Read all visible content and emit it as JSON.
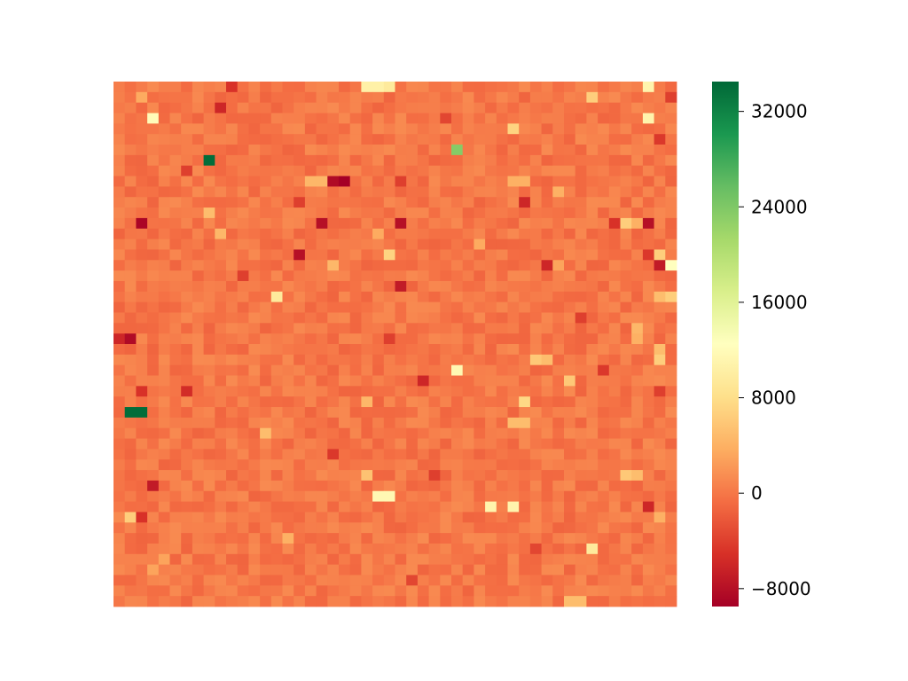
{
  "chart_data": {
    "type": "heatmap",
    "title": "",
    "xlabel": "",
    "ylabel": "",
    "rows": 50,
    "cols": 50,
    "value_range": [
      -9500,
      34500
    ],
    "colormap": "RdYlGn",
    "colorbar": {
      "ticks": [
        32000,
        24000,
        16000,
        8000,
        0,
        -8000
      ],
      "tick_labels": [
        "32000",
        "24000",
        "16000",
        "8000",
        "0",
        "−8000"
      ]
    },
    "background_value": 0,
    "background_jitter": 1300,
    "notable_cells": [
      {
        "row": 0,
        "col": 22,
        "value": 10500
      },
      {
        "row": 0,
        "col": 23,
        "value": 10500
      },
      {
        "row": 0,
        "col": 24,
        "value": 9500
      },
      {
        "row": 0,
        "col": 47,
        "value": 11000
      },
      {
        "row": 0,
        "col": 10,
        "value": -5000
      },
      {
        "row": 1,
        "col": 2,
        "value": 3500
      },
      {
        "row": 1,
        "col": 42,
        "value": 6500
      },
      {
        "row": 1,
        "col": 49,
        "value": -4000
      },
      {
        "row": 2,
        "col": 9,
        "value": -6000
      },
      {
        "row": 3,
        "col": 3,
        "value": 12000
      },
      {
        "row": 3,
        "col": 47,
        "value": 11000
      },
      {
        "row": 3,
        "col": 29,
        "value": -3500
      },
      {
        "row": 4,
        "col": 35,
        "value": 7000
      },
      {
        "row": 5,
        "col": 48,
        "value": -4500
      },
      {
        "row": 6,
        "col": 30,
        "value": 23500
      },
      {
        "row": 7,
        "col": 8,
        "value": 34000
      },
      {
        "row": 8,
        "col": 6,
        "value": -4000
      },
      {
        "row": 9,
        "col": 19,
        "value": -8500
      },
      {
        "row": 9,
        "col": 20,
        "value": -9500
      },
      {
        "row": 9,
        "col": 17,
        "value": 4500
      },
      {
        "row": 9,
        "col": 18,
        "value": 4500
      },
      {
        "row": 9,
        "col": 25,
        "value": -4000
      },
      {
        "row": 9,
        "col": 35,
        "value": 4000
      },
      {
        "row": 9,
        "col": 36,
        "value": 4000
      },
      {
        "row": 10,
        "col": 39,
        "value": 4000
      },
      {
        "row": 11,
        "col": 16,
        "value": -4000
      },
      {
        "row": 11,
        "col": 36,
        "value": -6000
      },
      {
        "row": 12,
        "col": 8,
        "value": 5000
      },
      {
        "row": 13,
        "col": 2,
        "value": -9000
      },
      {
        "row": 13,
        "col": 18,
        "value": -8000
      },
      {
        "row": 13,
        "col": 25,
        "value": -8000
      },
      {
        "row": 13,
        "col": 44,
        "value": -5000
      },
      {
        "row": 13,
        "col": 45,
        "value": 6500
      },
      {
        "row": 13,
        "col": 46,
        "value": 4000
      },
      {
        "row": 13,
        "col": 47,
        "value": -8000
      },
      {
        "row": 14,
        "col": 9,
        "value": 4500
      },
      {
        "row": 14,
        "col": 23,
        "value": 3500
      },
      {
        "row": 15,
        "col": 32,
        "value": 3500
      },
      {
        "row": 16,
        "col": 16,
        "value": -8000
      },
      {
        "row": 16,
        "col": 24,
        "value": 7000
      },
      {
        "row": 16,
        "col": 48,
        "value": 6500
      },
      {
        "row": 16,
        "col": 47,
        "value": -4500
      },
      {
        "row": 17,
        "col": 19,
        "value": 4500
      },
      {
        "row": 17,
        "col": 38,
        "value": -6000
      },
      {
        "row": 17,
        "col": 39,
        "value": 3000
      },
      {
        "row": 17,
        "col": 49,
        "value": 12500
      },
      {
        "row": 17,
        "col": 48,
        "value": -7000
      },
      {
        "row": 18,
        "col": 11,
        "value": -4000
      },
      {
        "row": 19,
        "col": 25,
        "value": -7000
      },
      {
        "row": 20,
        "col": 14,
        "value": 9500
      },
      {
        "row": 20,
        "col": 48,
        "value": 5000
      },
      {
        "row": 20,
        "col": 49,
        "value": 6500
      },
      {
        "row": 22,
        "col": 41,
        "value": -4000
      },
      {
        "row": 23,
        "col": 46,
        "value": 4500
      },
      {
        "row": 24,
        "col": 0,
        "value": -6000
      },
      {
        "row": 24,
        "col": 1,
        "value": -8500
      },
      {
        "row": 24,
        "col": 24,
        "value": -4000
      },
      {
        "row": 24,
        "col": 46,
        "value": 4000
      },
      {
        "row": 25,
        "col": 48,
        "value": 5000
      },
      {
        "row": 26,
        "col": 37,
        "value": 6000
      },
      {
        "row": 26,
        "col": 38,
        "value": 5000
      },
      {
        "row": 26,
        "col": 48,
        "value": 6500
      },
      {
        "row": 27,
        "col": 30,
        "value": 11500
      },
      {
        "row": 27,
        "col": 43,
        "value": -4500
      },
      {
        "row": 28,
        "col": 27,
        "value": -6000
      },
      {
        "row": 28,
        "col": 40,
        "value": 6000
      },
      {
        "row": 29,
        "col": 2,
        "value": -5000
      },
      {
        "row": 29,
        "col": 6,
        "value": -5500
      },
      {
        "row": 29,
        "col": 48,
        "value": -4000
      },
      {
        "row": 30,
        "col": 36,
        "value": 7500
      },
      {
        "row": 30,
        "col": 22,
        "value": 4500
      },
      {
        "row": 31,
        "col": 1,
        "value": 34000
      },
      {
        "row": 31,
        "col": 2,
        "value": 34000
      },
      {
        "row": 32,
        "col": 36,
        "value": 5000
      },
      {
        "row": 32,
        "col": 35,
        "value": 5000
      },
      {
        "row": 33,
        "col": 13,
        "value": 5000
      },
      {
        "row": 35,
        "col": 19,
        "value": -4500
      },
      {
        "row": 37,
        "col": 22,
        "value": 5500
      },
      {
        "row": 37,
        "col": 45,
        "value": 6000
      },
      {
        "row": 37,
        "col": 46,
        "value": 5000
      },
      {
        "row": 37,
        "col": 28,
        "value": -4000
      },
      {
        "row": 38,
        "col": 3,
        "value": -7000
      },
      {
        "row": 39,
        "col": 23,
        "value": 11500
      },
      {
        "row": 39,
        "col": 24,
        "value": 11500
      },
      {
        "row": 40,
        "col": 33,
        "value": 11000
      },
      {
        "row": 40,
        "col": 35,
        "value": 11000
      },
      {
        "row": 40,
        "col": 47,
        "value": -6000
      },
      {
        "row": 41,
        "col": 1,
        "value": 6500
      },
      {
        "row": 41,
        "col": 2,
        "value": -5000
      },
      {
        "row": 41,
        "col": 48,
        "value": 4000
      },
      {
        "row": 43,
        "col": 15,
        "value": 4000
      },
      {
        "row": 44,
        "col": 42,
        "value": 9500
      },
      {
        "row": 44,
        "col": 37,
        "value": -3500
      },
      {
        "row": 45,
        "col": 4,
        "value": 3000
      },
      {
        "row": 46,
        "col": 3,
        "value": 3000
      },
      {
        "row": 47,
        "col": 26,
        "value": -3500
      },
      {
        "row": 49,
        "col": 40,
        "value": 5000
      },
      {
        "row": 49,
        "col": 41,
        "value": 5000
      }
    ]
  }
}
